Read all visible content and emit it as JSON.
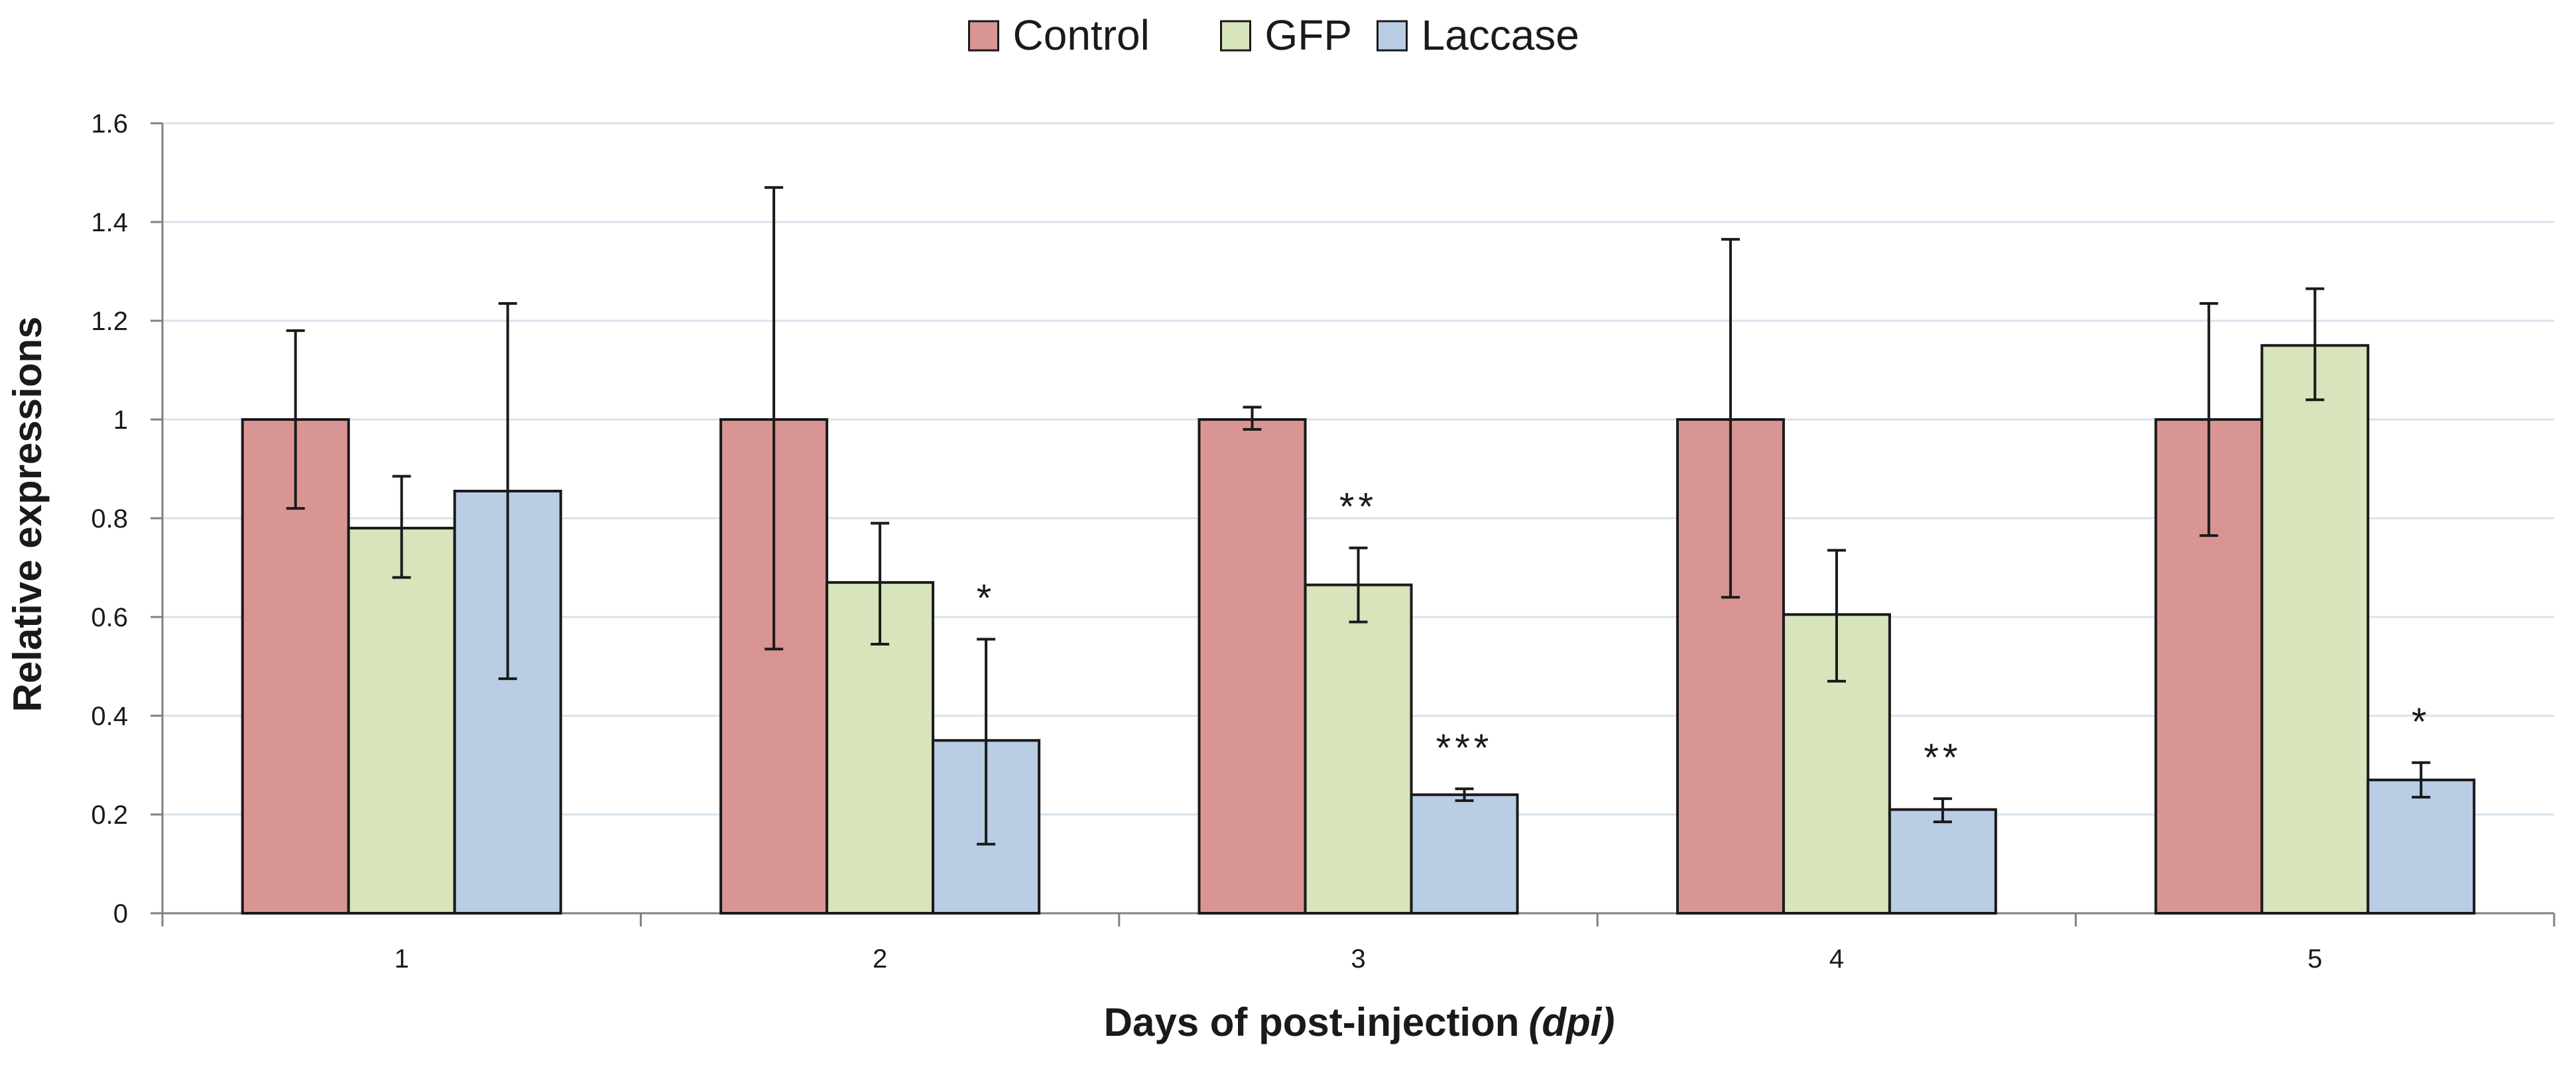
{
  "chart_data": {
    "type": "bar",
    "categories": [
      "1",
      "2",
      "3",
      "4",
      "5"
    ],
    "series": [
      {
        "name": "Control",
        "color": "#d99594",
        "values": [
          1.0,
          1.0,
          1.0,
          1.0,
          1.0
        ],
        "error_low": [
          0.82,
          0.535,
          0.98,
          0.64,
          0.765
        ],
        "error_high": [
          1.18,
          1.47,
          1.025,
          1.365,
          1.235
        ]
      },
      {
        "name": "GFP",
        "color": "#d7e4bc",
        "values": [
          0.78,
          0.67,
          0.665,
          0.605,
          1.15
        ],
        "error_low": [
          0.68,
          0.545,
          0.59,
          0.47,
          1.04
        ],
        "error_high": [
          0.885,
          0.79,
          0.74,
          0.735,
          1.265
        ]
      },
      {
        "name": "Laccase",
        "color": "#b9cde5",
        "values": [
          0.855,
          0.35,
          0.24,
          0.21,
          0.27
        ],
        "error_low": [
          0.475,
          0.14,
          0.228,
          0.185,
          0.235
        ],
        "error_high": [
          1.235,
          0.555,
          0.252,
          0.232,
          0.305
        ]
      }
    ],
    "significance": [
      {
        "category": "2",
        "series": "Laccase",
        "label": "*"
      },
      {
        "category": "3",
        "series": "GFP",
        "label": "**"
      },
      {
        "category": "3",
        "series": "Laccase",
        "label": "***"
      },
      {
        "category": "4",
        "series": "Laccase",
        "label": "**"
      },
      {
        "category": "5",
        "series": "Laccase",
        "label": "*"
      }
    ],
    "xlabel": "Days of post-injection",
    "xlabel_italic": "(dpi)",
    "ylabel": "Relative expressions",
    "ylim": [
      0,
      1.6
    ],
    "yticks": [
      "0",
      "0.2",
      "0.4",
      "0.6",
      "0.8",
      "1",
      "1.2",
      "1.4",
      "1.6"
    ],
    "grid": true,
    "gridColor": "#d6e3ee",
    "legend_position": "top-center"
  }
}
